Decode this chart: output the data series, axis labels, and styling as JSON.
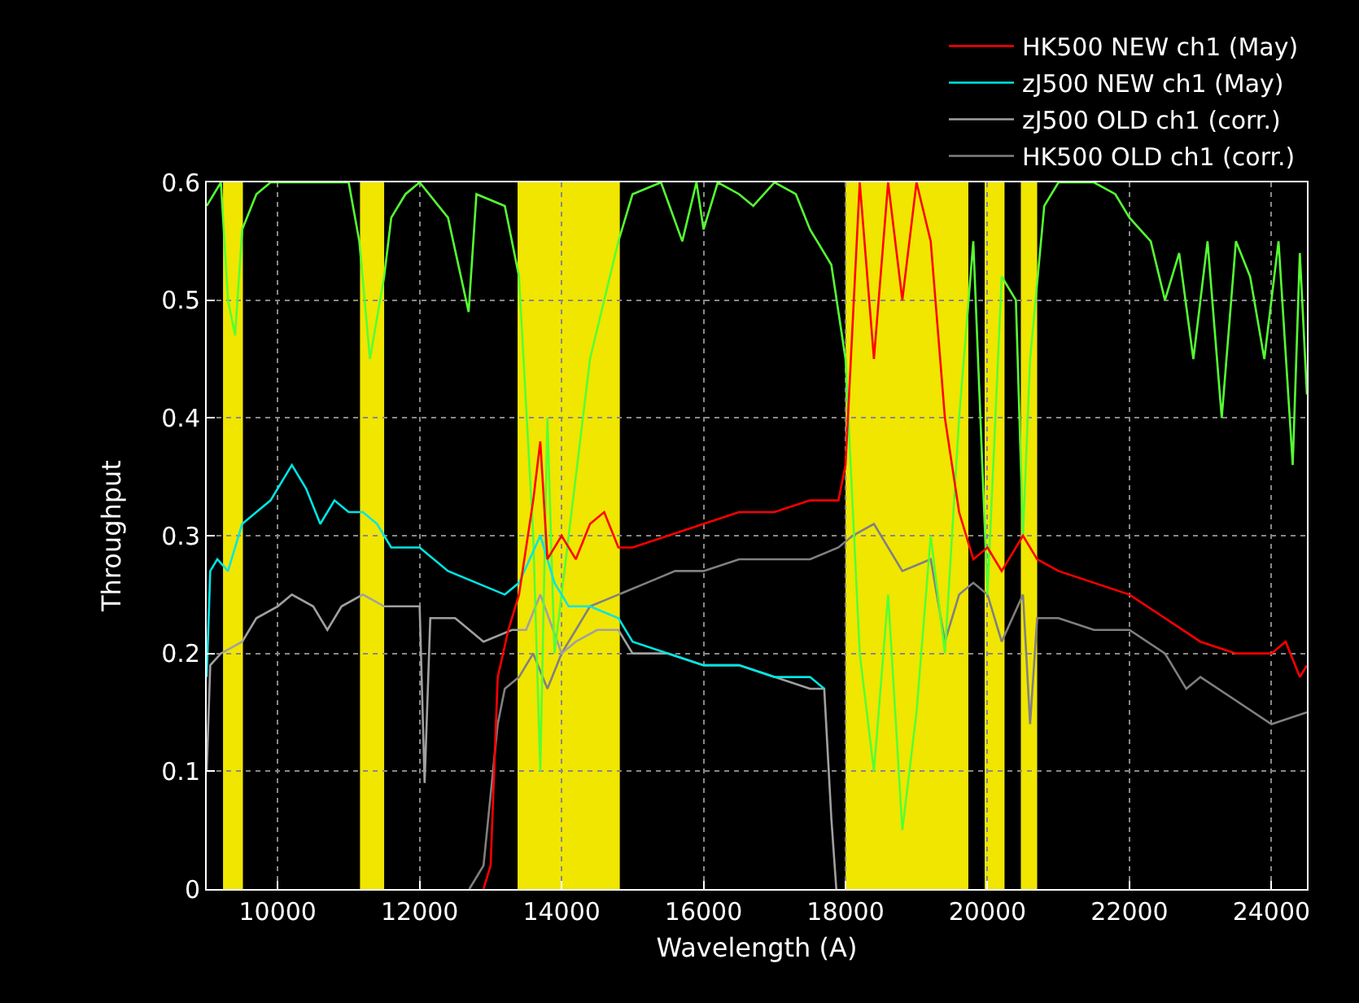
{
  "chart_data": {
    "type": "line",
    "xlabel": "Wavelength (A)",
    "ylabel": "Throughput",
    "xlim": [
      9000,
      24500
    ],
    "ylim": [
      0,
      0.6
    ],
    "xticks": [
      10000,
      12000,
      14000,
      16000,
      18000,
      20000,
      22000,
      24000
    ],
    "yticks": [
      {
        "value": 0,
        "label": "0"
      },
      0.1,
      0.2,
      0.3,
      0.4,
      0.5,
      0.6
    ],
    "grid": true,
    "legend": "top right",
    "line_style": "solid",
    "marker": "none",
    "bands": [
      {
        "axis": "x",
        "from": 9230,
        "to": 9510,
        "color": "#f0e600"
      },
      {
        "axis": "x",
        "from": 11160,
        "to": 11500,
        "color": "#f0e600"
      },
      {
        "axis": "x",
        "from": 13380,
        "to": 14820,
        "color": "#f0e600"
      },
      {
        "axis": "x",
        "from": 18000,
        "to": 19730,
        "color": "#f0e600"
      },
      {
        "axis": "x",
        "from": 19960,
        "to": 20240,
        "color": "#f0e600"
      },
      {
        "axis": "x",
        "from": 20470,
        "to": 20700,
        "color": "#f0e600"
      }
    ],
    "series": [
      {
        "name": "HK500 OLD ch1 (corr.)",
        "color": "#808080",
        "x": [
          12700,
          12900,
          13000,
          13100,
          13200,
          13400,
          13600,
          13800,
          14000,
          14200,
          14400,
          14800,
          15200,
          15600,
          16000,
          16500,
          17000,
          17500,
          17900,
          18100,
          18400,
          18800,
          19200,
          19400,
          19600,
          19800,
          20000,
          20200,
          20500,
          20600,
          20700,
          21000,
          21500,
          22000,
          22500,
          22800,
          23000,
          23500,
          24000,
          24500
        ],
        "values": [
          0,
          0.02,
          0.08,
          0.14,
          0.17,
          0.18,
          0.2,
          0.17,
          0.2,
          0.22,
          0.24,
          0.25,
          0.26,
          0.27,
          0.27,
          0.28,
          0.28,
          0.28,
          0.29,
          0.3,
          0.31,
          0.27,
          0.28,
          0.21,
          0.25,
          0.26,
          0.25,
          0.21,
          0.25,
          0.14,
          0.23,
          0.23,
          0.22,
          0.22,
          0.2,
          0.17,
          0.18,
          0.16,
          0.14,
          0.15
        ]
      },
      {
        "name": "zJ500 OLD ch1 (corr.)",
        "color": "#a0a0a0",
        "x": [
          9000,
          9050,
          9200,
          9500,
          9700,
          10000,
          10200,
          10500,
          10700,
          10900,
          11200,
          11500,
          11800,
          12000,
          12070,
          12150,
          12500,
          12900,
          13300,
          13500,
          13700,
          14000,
          14200,
          14500,
          14800,
          15000,
          15500,
          16000,
          16500,
          17000,
          17500,
          17700,
          17800,
          17870
        ],
        "values": [
          0.1,
          0.19,
          0.2,
          0.21,
          0.23,
          0.24,
          0.25,
          0.24,
          0.22,
          0.24,
          0.25,
          0.24,
          0.24,
          0.24,
          0.09,
          0.23,
          0.23,
          0.21,
          0.22,
          0.22,
          0.25,
          0.2,
          0.21,
          0.22,
          0.22,
          0.2,
          0.2,
          0.19,
          0.19,
          0.18,
          0.17,
          0.17,
          0.06,
          0
        ]
      },
      {
        "color": "#55ff33",
        "x": [
          9000,
          9200,
          9300,
          9400,
          9500,
          9700,
          9900,
          11000,
          11150,
          11300,
          11500,
          11600,
          11800,
          12000,
          12400,
          12690,
          12800,
          13200,
          13400,
          13600,
          13700,
          13800,
          13900,
          14000,
          14200,
          14400,
          14600,
          14800,
          15000,
          15400,
          15700,
          15900,
          16000,
          16200,
          16500,
          16700,
          17000,
          17300,
          17500,
          17800,
          18000,
          18200,
          18400,
          18600,
          18800,
          19000,
          19200,
          19400,
          19600,
          19800,
          20000,
          20200,
          20400,
          20500,
          20600,
          20800,
          21000,
          21500,
          21800,
          22000,
          22300,
          22500,
          22700,
          22900,
          23100,
          23300,
          23500,
          23700,
          23900,
          24100,
          24300,
          24400,
          24500
        ],
        "values": [
          0.58,
          0.6,
          0.5,
          0.47,
          0.56,
          0.59,
          0.6,
          0.6,
          0.55,
          0.45,
          0.52,
          0.57,
          0.59,
          0.6,
          0.57,
          0.49,
          0.59,
          0.58,
          0.52,
          0.3,
          0.1,
          0.4,
          0.2,
          0.25,
          0.35,
          0.45,
          0.5,
          0.55,
          0.59,
          0.6,
          0.55,
          0.6,
          0.56,
          0.6,
          0.59,
          0.58,
          0.6,
          0.59,
          0.56,
          0.53,
          0.45,
          0.2,
          0.1,
          0.25,
          0.05,
          0.15,
          0.3,
          0.2,
          0.4,
          0.55,
          0.25,
          0.52,
          0.5,
          0.3,
          0.45,
          0.58,
          0.6,
          0.6,
          0.59,
          0.57,
          0.55,
          0.5,
          0.54,
          0.45,
          0.55,
          0.4,
          0.55,
          0.52,
          0.45,
          0.55,
          0.36,
          0.54,
          0.42
        ]
      },
      {
        "name": "zJ500 NEW ch1 (May)",
        "color": "#00e5e5",
        "x": [
          9000,
          9050,
          9150,
          9300,
          9500,
          9700,
          9900,
          10100,
          10200,
          10400,
          10600,
          10800,
          11000,
          11200,
          11400,
          11600,
          12000,
          12400,
          12800,
          13200,
          13400,
          13700,
          13900,
          14100,
          14400,
          14800,
          15000,
          15500,
          16000,
          16500,
          17000,
          17500,
          17700
        ],
        "values": [
          0.18,
          0.27,
          0.28,
          0.27,
          0.31,
          0.32,
          0.33,
          0.35,
          0.36,
          0.34,
          0.31,
          0.33,
          0.32,
          0.32,
          0.31,
          0.29,
          0.29,
          0.27,
          0.26,
          0.25,
          0.26,
          0.3,
          0.26,
          0.24,
          0.24,
          0.23,
          0.21,
          0.2,
          0.19,
          0.19,
          0.18,
          0.18,
          0.17
        ]
      },
      {
        "name": "HK500 NEW ch1 (May)",
        "color": "#ff0000",
        "x": [
          12900,
          13000,
          13050,
          13100,
          13250,
          13400,
          13600,
          13700,
          13800,
          14000,
          14200,
          14400,
          14600,
          14800,
          15000,
          15500,
          16000,
          16500,
          17000,
          17500,
          17900,
          18000,
          18200,
          18400,
          18600,
          18800,
          19000,
          19200,
          19400,
          19600,
          19800,
          20000,
          20200,
          20500,
          20700,
          21000,
          21500,
          22000,
          22500,
          23000,
          23500,
          24000,
          24200,
          24400,
          24500
        ],
        "values": [
          0,
          0.02,
          0.1,
          0.18,
          0.22,
          0.25,
          0.33,
          0.38,
          0.28,
          0.3,
          0.28,
          0.31,
          0.32,
          0.29,
          0.29,
          0.3,
          0.31,
          0.32,
          0.32,
          0.33,
          0.33,
          0.36,
          0.6,
          0.45,
          0.6,
          0.5,
          0.6,
          0.55,
          0.4,
          0.32,
          0.28,
          0.29,
          0.27,
          0.3,
          0.28,
          0.27,
          0.26,
          0.25,
          0.23,
          0.21,
          0.2,
          0.2,
          0.21,
          0.18,
          0.19
        ]
      }
    ]
  }
}
